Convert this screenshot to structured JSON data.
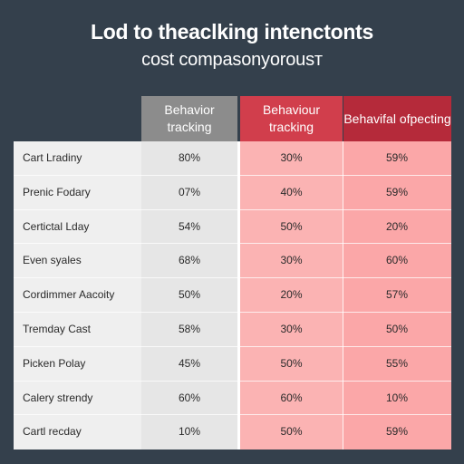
{
  "chart_data": {
    "type": "table",
    "title": "Lod to theaclking intenctonts",
    "subtitle": "cost compasonyorousт",
    "columns": [
      "Behavior tracking",
      "Behaviour tracking",
      "Behavifal ofpecting"
    ],
    "rows": [
      {
        "label": "Cart Lradiny",
        "values": [
          "80%",
          "30%",
          "59%"
        ]
      },
      {
        "label": "Prenic Fodary",
        "values": [
          "07%",
          "40%",
          "59%"
        ]
      },
      {
        "label": "Certictal Lday",
        "values": [
          "54%",
          "50%",
          "20%"
        ]
      },
      {
        "label": "Even syales",
        "values": [
          "68%",
          "30%",
          "60%"
        ]
      },
      {
        "label": "Cordimmer Aacoity",
        "values": [
          "50%",
          "20%",
          "57%"
        ]
      },
      {
        "label": "Tremday Cast",
        "values": [
          "58%",
          "30%",
          "50%"
        ]
      },
      {
        "label": "Picken Polay",
        "values": [
          "45%",
          "50%",
          "55%"
        ]
      },
      {
        "label": "Calery strendy",
        "values": [
          "60%",
          "60%",
          "10%"
        ]
      },
      {
        "label": "Cartl recday",
        "values": [
          "10%",
          "50%",
          "59%"
        ]
      }
    ]
  },
  "colors": {
    "background": "#34404c",
    "header_gray": "#8c8c8c",
    "header_red": "#d13e4c",
    "header_dark_red": "#b52a3a",
    "cell_pink": "#fbb3b3"
  }
}
